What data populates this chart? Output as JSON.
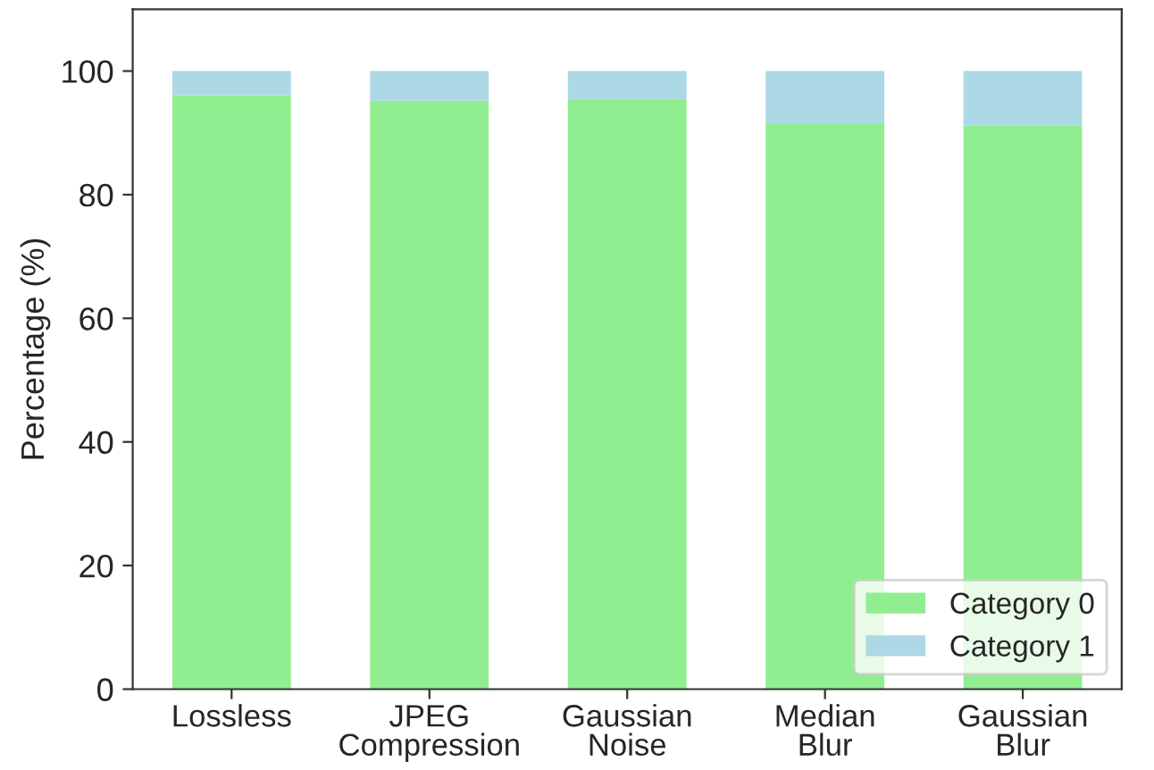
{
  "chart_data": {
    "type": "bar",
    "stacked": true,
    "ylabel": "Percentage (%)",
    "categories": [
      "Lossless",
      "JPEG\nCompression",
      "Gaussian\nNoise",
      "Median\nBlur",
      "Gaussian\nBlur"
    ],
    "series": [
      {
        "name": "Category 0",
        "color": "#90ee90",
        "values": [
          96.1,
          95.2,
          95.5,
          91.4,
          91.2
        ]
      },
      {
        "name": "Category 1",
        "color": "#add8e6",
        "values": [
          3.9,
          4.8,
          4.5,
          8.6,
          8.8
        ]
      }
    ],
    "ylim": [
      0,
      110
    ],
    "yticks": [
      0,
      20,
      40,
      60,
      80,
      100
    ],
    "grid": false,
    "legend": "bottom right"
  }
}
